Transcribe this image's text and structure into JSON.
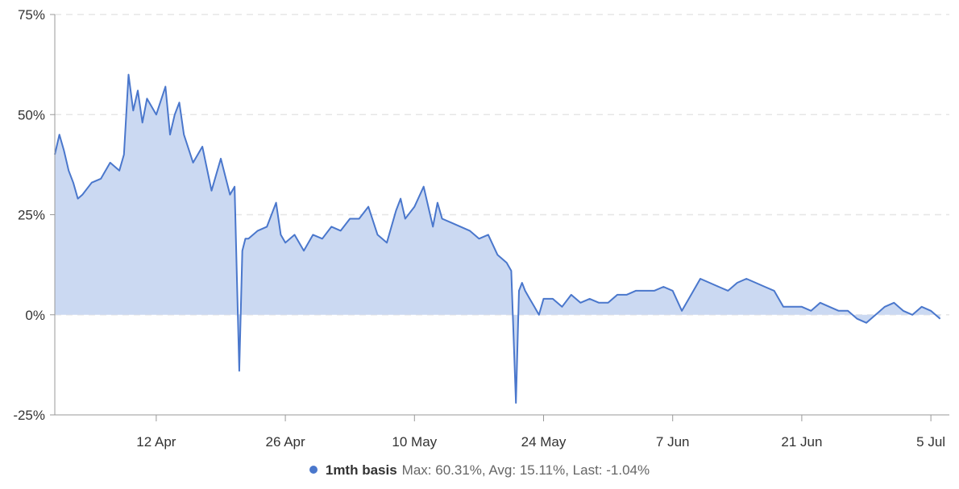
{
  "chart_data": {
    "type": "area",
    "title": "",
    "xlabel": "",
    "ylabel": "",
    "y_unit": "%",
    "ylim": [
      -25,
      75
    ],
    "y_ticks": [
      -25,
      0,
      25,
      50,
      75
    ],
    "y_tick_labels": [
      "-25%",
      "0%",
      "25%",
      "50%",
      "75%"
    ],
    "x_range": [
      "2024-04-01",
      "2024-07-06"
    ],
    "x_ticks": [
      "2024-04-12",
      "2024-04-26",
      "2024-05-10",
      "2024-05-24",
      "2024-06-07",
      "2024-06-21",
      "2024-07-05"
    ],
    "x_tick_labels": [
      "12 Apr",
      "26 Apr",
      "10 May",
      "24 May",
      "7 Jun",
      "21 Jun",
      "5 Jul"
    ],
    "grid": true,
    "legend_position": "bottom-center",
    "series": [
      {
        "name": "1mth basis",
        "color": "#4a77cc",
        "fill_color": "#cbd9f2",
        "stats": "Max: 60.31%, Avg: 15.11%, Last: -1.04%",
        "points": [
          [
            "2024-04-01",
            40
          ],
          [
            "2024-04-01",
            45
          ],
          [
            "2024-04-02",
            41
          ],
          [
            "2024-04-02",
            36
          ],
          [
            "2024-04-03",
            33
          ],
          [
            "2024-04-03",
            29
          ],
          [
            "2024-04-04",
            30
          ],
          [
            "2024-04-05",
            33
          ],
          [
            "2024-04-06",
            34
          ],
          [
            "2024-04-07",
            38
          ],
          [
            "2024-04-08",
            36
          ],
          [
            "2024-04-08",
            40
          ],
          [
            "2024-04-09",
            60
          ],
          [
            "2024-04-09",
            51
          ],
          [
            "2024-04-10",
            56
          ],
          [
            "2024-04-10",
            48
          ],
          [
            "2024-04-11",
            54
          ],
          [
            "2024-04-12",
            50
          ],
          [
            "2024-04-13",
            57
          ],
          [
            "2024-04-13",
            45
          ],
          [
            "2024-04-14",
            50
          ],
          [
            "2024-04-14",
            53
          ],
          [
            "2024-04-15",
            45
          ],
          [
            "2024-04-16",
            38
          ],
          [
            "2024-04-17",
            42
          ],
          [
            "2024-04-18",
            31
          ],
          [
            "2024-04-19",
            39
          ],
          [
            "2024-04-20",
            30
          ],
          [
            "2024-04-20",
            32
          ],
          [
            "2024-04-21",
            -14
          ],
          [
            "2024-04-21",
            16
          ],
          [
            "2024-04-21",
            19
          ],
          [
            "2024-04-22",
            19
          ],
          [
            "2024-04-23",
            21
          ],
          [
            "2024-04-24",
            22
          ],
          [
            "2024-04-25",
            28
          ],
          [
            "2024-04-25",
            20
          ],
          [
            "2024-04-26",
            18
          ],
          [
            "2024-04-27",
            20
          ],
          [
            "2024-04-28",
            16
          ],
          [
            "2024-04-29",
            20
          ],
          [
            "2024-04-30",
            19
          ],
          [
            "2024-05-01",
            22
          ],
          [
            "2024-05-02",
            21
          ],
          [
            "2024-05-03",
            24
          ],
          [
            "2024-05-04",
            24
          ],
          [
            "2024-05-05",
            27
          ],
          [
            "2024-05-06",
            20
          ],
          [
            "2024-05-07",
            18
          ],
          [
            "2024-05-08",
            26
          ],
          [
            "2024-05-08",
            29
          ],
          [
            "2024-05-09",
            24
          ],
          [
            "2024-05-10",
            27
          ],
          [
            "2024-05-11",
            32
          ],
          [
            "2024-05-12",
            22
          ],
          [
            "2024-05-12",
            28
          ],
          [
            "2024-05-13",
            24
          ],
          [
            "2024-05-14",
            23
          ],
          [
            "2024-05-15",
            22
          ],
          [
            "2024-05-16",
            21
          ],
          [
            "2024-05-17",
            19
          ],
          [
            "2024-05-18",
            20
          ],
          [
            "2024-05-19",
            15
          ],
          [
            "2024-05-20",
            13
          ],
          [
            "2024-05-20",
            11
          ],
          [
            "2024-05-21",
            -22
          ],
          [
            "2024-05-21",
            6
          ],
          [
            "2024-05-21",
            8
          ],
          [
            "2024-05-22",
            6
          ],
          [
            "2024-05-22",
            4
          ],
          [
            "2024-05-23",
            2
          ],
          [
            "2024-05-23",
            0
          ],
          [
            "2024-05-24",
            4
          ],
          [
            "2024-05-25",
            4
          ],
          [
            "2024-05-26",
            2
          ],
          [
            "2024-05-27",
            5
          ],
          [
            "2024-05-28",
            3
          ],
          [
            "2024-05-29",
            4
          ],
          [
            "2024-05-30",
            3
          ],
          [
            "2024-05-31",
            3
          ],
          [
            "2024-06-01",
            5
          ],
          [
            "2024-06-02",
            5
          ],
          [
            "2024-06-03",
            6
          ],
          [
            "2024-06-04",
            6
          ],
          [
            "2024-06-05",
            6
          ],
          [
            "2024-06-06",
            7
          ],
          [
            "2024-06-07",
            6
          ],
          [
            "2024-06-08",
            1
          ],
          [
            "2024-06-09",
            5
          ],
          [
            "2024-06-10",
            9
          ],
          [
            "2024-06-11",
            8
          ],
          [
            "2024-06-12",
            7
          ],
          [
            "2024-06-13",
            6
          ],
          [
            "2024-06-14",
            8
          ],
          [
            "2024-06-15",
            9
          ],
          [
            "2024-06-16",
            8
          ],
          [
            "2024-06-17",
            7
          ],
          [
            "2024-06-18",
            6
          ],
          [
            "2024-06-19",
            2
          ],
          [
            "2024-06-20",
            2
          ],
          [
            "2024-06-21",
            2
          ],
          [
            "2024-06-22",
            1
          ],
          [
            "2024-06-23",
            3
          ],
          [
            "2024-06-24",
            2
          ],
          [
            "2024-06-25",
            1
          ],
          [
            "2024-06-26",
            1
          ],
          [
            "2024-06-27",
            -1
          ],
          [
            "2024-06-28",
            -2
          ],
          [
            "2024-06-29",
            0
          ],
          [
            "2024-06-30",
            2
          ],
          [
            "2024-07-01",
            3
          ],
          [
            "2024-07-02",
            1
          ],
          [
            "2024-07-03",
            0
          ],
          [
            "2024-07-04",
            2
          ],
          [
            "2024-07-05",
            1
          ],
          [
            "2024-07-06",
            -1
          ]
        ]
      }
    ]
  }
}
